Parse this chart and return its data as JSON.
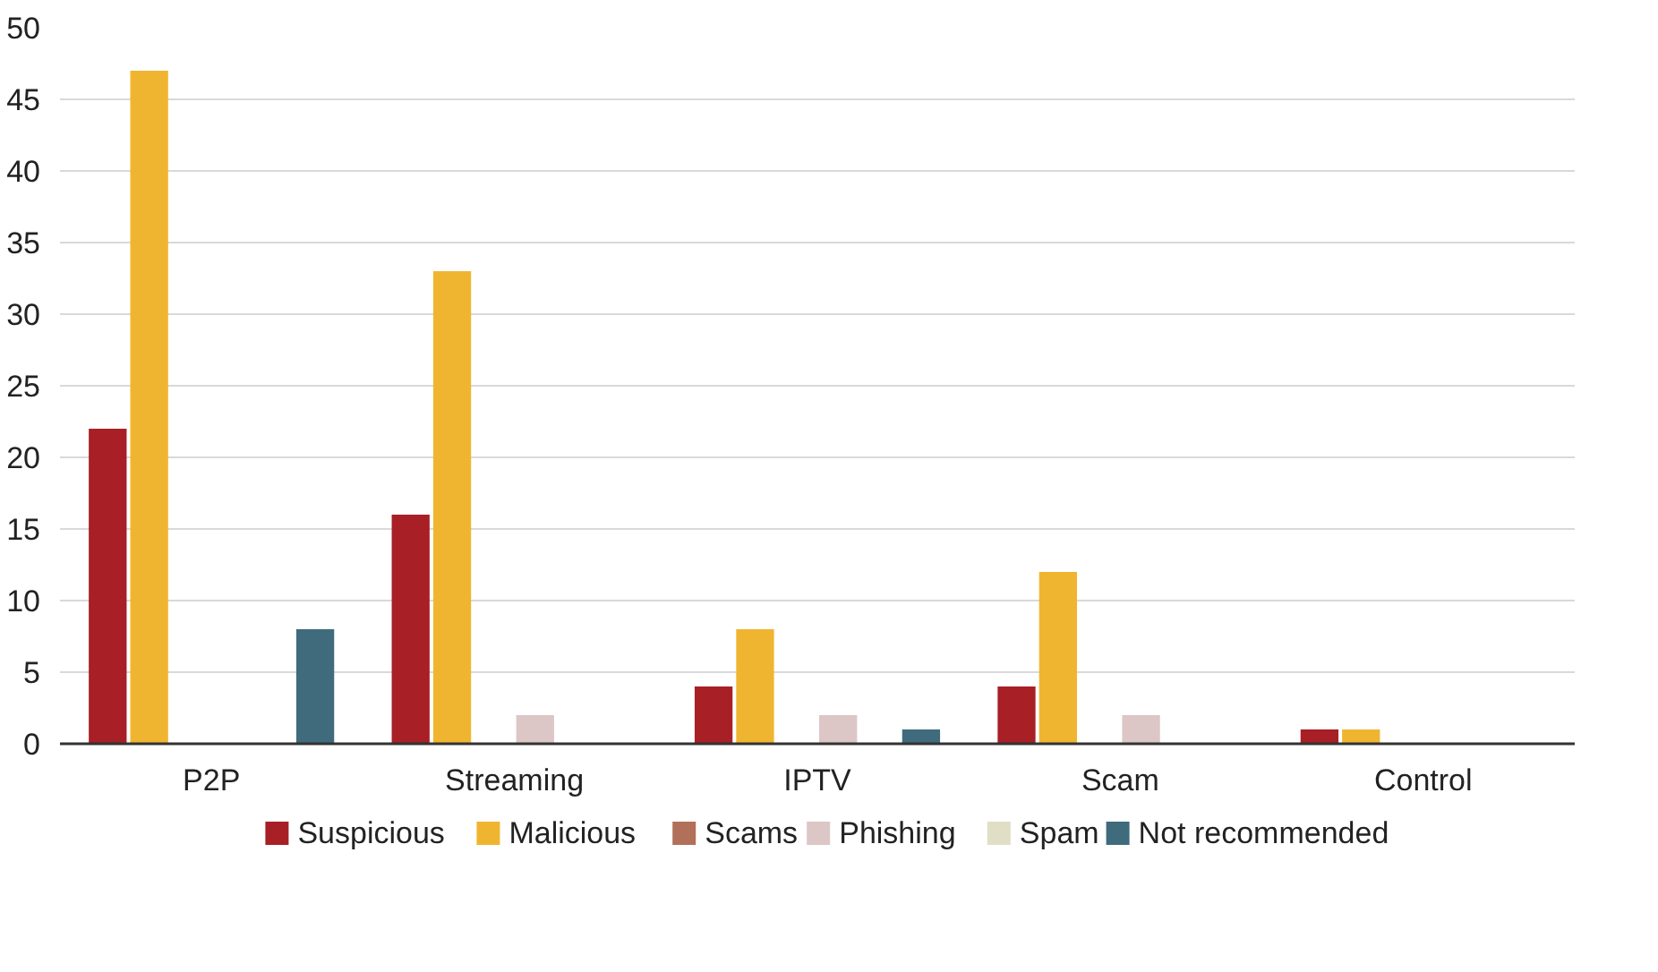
{
  "chart_data": {
    "type": "bar",
    "categories": [
      "P2P",
      "Streaming",
      "IPTV",
      "Scam",
      "Control"
    ],
    "series": [
      {
        "name": "Suspicious",
        "color": "#a81f26",
        "values": [
          22,
          16,
          4,
          4,
          1
        ]
      },
      {
        "name": "Malicious",
        "color": "#f0b530",
        "values": [
          47,
          33,
          8,
          12,
          1
        ]
      },
      {
        "name": "Scams",
        "color": "#b2705a",
        "values": [
          0,
          0,
          0,
          0,
          0
        ]
      },
      {
        "name": "Phishing",
        "color": "#dcc6c6",
        "values": [
          0,
          2,
          2,
          2,
          0
        ]
      },
      {
        "name": "Spam",
        "color": "#e0dfc6",
        "values": [
          0,
          0,
          0,
          0,
          0
        ]
      },
      {
        "name": "Not recommended",
        "color": "#3f6b7d",
        "values": [
          8,
          0,
          1,
          0,
          0
        ]
      }
    ],
    "ylim": [
      0,
      50
    ],
    "yticks": [
      0,
      5,
      10,
      15,
      20,
      25,
      30,
      35,
      40,
      45,
      50
    ],
    "grid": "y",
    "legend": "bottom"
  }
}
